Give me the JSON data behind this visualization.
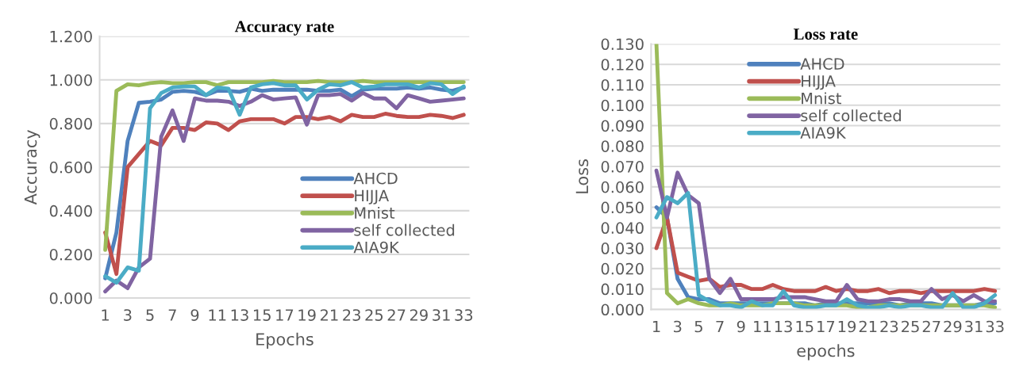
{
  "chart_data": [
    {
      "type": "line",
      "title": "Accuracy rate",
      "xlabel": "Epochs",
      "ylabel": "Accuracy",
      "categories": [
        "1",
        null,
        "3",
        null,
        "5",
        null,
        "7",
        null,
        "9",
        null,
        "11",
        null,
        "13",
        null,
        "15",
        null,
        "17",
        null,
        "19",
        null,
        "21",
        null,
        "23",
        null,
        "25",
        null,
        "27",
        null,
        "29",
        null,
        "31",
        null,
        "33"
      ],
      "ylim": [
        0,
        1.2
      ],
      "yticks": [
        {
          "value": 0,
          "label": "0.000"
        },
        {
          "value": 0.2,
          "label": "0.200"
        },
        {
          "value": 0.4,
          "label": "0.400"
        },
        {
          "value": 0.6,
          "label": "0.600"
        },
        {
          "value": 0.8,
          "label": "0.800"
        },
        {
          "value": 1.0,
          "label": "1.000"
        },
        {
          "value": 1.2,
          "label": "1.200"
        }
      ],
      "grid": "y",
      "legend": "center right",
      "marker": "none",
      "line_style": "solid",
      "series": [
        {
          "name": "AHCD",
          "color": "#4f81bd",
          "values": [
            0.09,
            0.3,
            0.72,
            0.895,
            0.9,
            0.91,
            0.945,
            0.95,
            0.945,
            0.93,
            0.95,
            0.95,
            0.945,
            0.96,
            0.95,
            0.955,
            0.955,
            0.955,
            0.955,
            0.95,
            0.95,
            0.955,
            0.925,
            0.955,
            0.96,
            0.96,
            0.96,
            0.965,
            0.96,
            0.965,
            0.955,
            0.95,
            0.965
          ]
        },
        {
          "name": "HIJJA",
          "color": "#c0504d",
          "values": [
            0.3,
            0.11,
            0.6,
            0.66,
            0.72,
            0.7,
            0.78,
            0.78,
            0.77,
            0.805,
            0.8,
            0.77,
            0.81,
            0.82,
            0.82,
            0.82,
            0.8,
            0.83,
            0.83,
            0.82,
            0.83,
            0.81,
            0.84,
            0.83,
            0.83,
            0.845,
            0.835,
            0.83,
            0.83,
            0.84,
            0.835,
            0.825,
            0.84
          ]
        },
        {
          "name": "Mnist",
          "color": "#9bbb59",
          "values": [
            0.22,
            0.95,
            0.98,
            0.975,
            0.985,
            0.99,
            0.985,
            0.985,
            0.99,
            0.99,
            0.975,
            0.99,
            0.99,
            0.99,
            0.99,
            0.995,
            0.99,
            0.99,
            0.99,
            0.995,
            0.99,
            0.99,
            0.99,
            0.995,
            0.99,
            0.99,
            0.99,
            0.99,
            0.99,
            0.99,
            0.99,
            0.99,
            0.99
          ]
        },
        {
          "name": "self collected",
          "color": "#8064a2",
          "values": [
            0.03,
            0.08,
            0.045,
            0.14,
            0.18,
            0.74,
            0.86,
            0.72,
            0.915,
            0.905,
            0.905,
            0.9,
            0.88,
            0.9,
            0.93,
            0.91,
            0.915,
            0.92,
            0.795,
            0.93,
            0.93,
            0.935,
            0.905,
            0.94,
            0.915,
            0.915,
            0.87,
            0.93,
            0.915,
            0.9,
            0.905,
            0.91,
            0.915
          ]
        },
        {
          "name": "AIA9K",
          "color": "#4bacc6",
          "values": [
            0.1,
            0.07,
            0.14,
            0.125,
            0.87,
            0.94,
            0.965,
            0.97,
            0.97,
            0.93,
            0.965,
            0.96,
            0.84,
            0.965,
            0.98,
            0.985,
            0.975,
            0.975,
            0.91,
            0.955,
            0.98,
            0.975,
            0.99,
            0.965,
            0.97,
            0.98,
            0.98,
            0.98,
            0.965,
            0.985,
            0.98,
            0.935,
            0.97
          ]
        }
      ]
    },
    {
      "type": "line",
      "title": "Loss rate",
      "xlabel": "epochs",
      "ylabel": "Loss",
      "categories": [
        "1",
        null,
        "3",
        null,
        "5",
        null,
        "7",
        null,
        "9",
        null,
        "11",
        null,
        "13",
        null,
        "15",
        null,
        "17",
        null,
        "19",
        null,
        "21",
        null,
        "23",
        null,
        "25",
        null,
        "27",
        null,
        "29",
        null,
        "31",
        null,
        "33"
      ],
      "ylim": [
        0,
        0.13
      ],
      "yticks": [
        {
          "value": 0,
          "label": "0.000"
        },
        {
          "value": 0.01,
          "label": "0.010"
        },
        {
          "value": 0.02,
          "label": "0.020"
        },
        {
          "value": 0.03,
          "label": "0.030"
        },
        {
          "value": 0.04,
          "label": "0.040"
        },
        {
          "value": 0.05,
          "label": "0.050"
        },
        {
          "value": 0.06,
          "label": "0.060"
        },
        {
          "value": 0.07,
          "label": "0.070"
        },
        {
          "value": 0.08,
          "label": "0.080"
        },
        {
          "value": 0.09,
          "label": "0.090"
        },
        {
          "value": 0.1,
          "label": "0.100"
        },
        {
          "value": 0.11,
          "label": "0.110"
        },
        {
          "value": 0.12,
          "label": "0.120"
        },
        {
          "value": 0.13,
          "label": "0.130"
        }
      ],
      "grid": "y",
      "legend": "top",
      "marker": "none",
      "line_style": "solid",
      "series": [
        {
          "name": "AHCD",
          "color": "#4f81bd",
          "values": [
            0.05,
            0.045,
            0.015,
            0.006,
            0.005,
            0.005,
            0.003,
            0.003,
            0.003,
            0.003,
            0.003,
            0.003,
            0.003,
            0.003,
            0.003,
            0.002,
            0.003,
            0.003,
            0.003,
            0.003,
            0.003,
            0.003,
            0.003,
            0.002,
            0.003,
            0.003,
            0.003,
            0.002,
            0.002,
            0.002,
            0.002,
            0.003,
            0.003
          ]
        },
        {
          "name": "HIJJA",
          "color": "#c0504d",
          "values": [
            0.03,
            0.045,
            0.018,
            0.016,
            0.014,
            0.015,
            0.011,
            0.012,
            0.012,
            0.01,
            0.01,
            0.012,
            0.01,
            0.009,
            0.009,
            0.009,
            0.011,
            0.009,
            0.01,
            0.009,
            0.009,
            0.01,
            0.008,
            0.009,
            0.009,
            0.008,
            0.009,
            0.009,
            0.009,
            0.009,
            0.009,
            0.01,
            0.009
          ]
        },
        {
          "name": "Mnist",
          "color": "#9bbb59",
          "values": [
            0.13,
            0.008,
            0.003,
            0.005,
            0.003,
            0.002,
            0.002,
            0.003,
            0.002,
            0.002,
            0.002,
            0.003,
            0.003,
            0.003,
            0.002,
            0.002,
            0.002,
            0.002,
            0.002,
            0.001,
            0.001,
            0.002,
            0.002,
            0.002,
            0.002,
            0.002,
            0.002,
            0.002,
            0.002,
            0.002,
            0.002,
            0.002,
            0.001
          ]
        },
        {
          "name": "self collected",
          "color": "#8064a2",
          "values": [
            0.068,
            0.045,
            0.067,
            0.056,
            0.052,
            0.015,
            0.008,
            0.015,
            0.005,
            0.005,
            0.005,
            0.005,
            0.006,
            0.006,
            0.006,
            0.005,
            0.004,
            0.004,
            0.012,
            0.005,
            0.004,
            0.004,
            0.005,
            0.005,
            0.004,
            0.004,
            0.01,
            0.005,
            0.007,
            0.004,
            0.007,
            0.004,
            0.004
          ]
        },
        {
          "name": "AIA9K",
          "color": "#4bacc6",
          "values": [
            0.045,
            0.055,
            0.052,
            0.057,
            0.007,
            0.004,
            0.002,
            0.002,
            0.001,
            0.004,
            0.002,
            0.002,
            0.009,
            0.002,
            0.001,
            0.001,
            0.002,
            0.002,
            0.005,
            0.002,
            0.001,
            0.001,
            0.002,
            0.001,
            0.002,
            0.002,
            0.001,
            0.001,
            0.008,
            0.001,
            0.001,
            0.003,
            0.007
          ]
        }
      ]
    }
  ]
}
